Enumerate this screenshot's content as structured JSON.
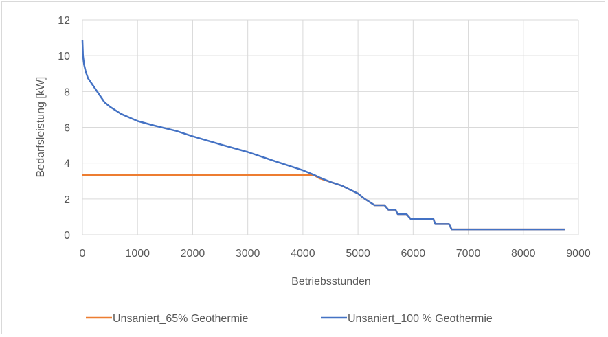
{
  "chart_data": {
    "type": "line",
    "title": "",
    "xlabel": "Betriebsstunden",
    "ylabel": "Bedarfsleistung [kW]",
    "xlim": [
      0,
      9000
    ],
    "ylim": [
      0,
      12
    ],
    "x_ticks": [
      0,
      1000,
      2000,
      3000,
      4000,
      5000,
      6000,
      7000,
      8000,
      9000
    ],
    "y_ticks": [
      0,
      2,
      4,
      6,
      8,
      10,
      12
    ],
    "grid": true,
    "legend_position": "bottom",
    "series": [
      {
        "name": "Unsaniert_65% Geothermie",
        "color": "#ed7d31",
        "points": [
          [
            0,
            3.33
          ],
          [
            4200,
            3.33
          ],
          [
            4300,
            3.15
          ],
          [
            4500,
            2.95
          ],
          [
            4700,
            2.75
          ],
          [
            4900,
            2.45
          ],
          [
            5000,
            2.3
          ],
          [
            5100,
            2.05
          ],
          [
            5200,
            1.85
          ],
          [
            5300,
            1.65
          ],
          [
            5480,
            1.65
          ],
          [
            5550,
            1.4
          ],
          [
            5680,
            1.4
          ],
          [
            5720,
            1.15
          ],
          [
            5880,
            1.15
          ],
          [
            5960,
            0.87
          ],
          [
            6370,
            0.87
          ],
          [
            6400,
            0.6
          ],
          [
            6650,
            0.6
          ],
          [
            6700,
            0.3
          ],
          [
            8750,
            0.3
          ]
        ]
      },
      {
        "name": "Unsaniert_100 % Geothermie",
        "color": "#4472c4",
        "points": [
          [
            0,
            10.85
          ],
          [
            10,
            10.0
          ],
          [
            30,
            9.5
          ],
          [
            60,
            9.1
          ],
          [
            100,
            8.75
          ],
          [
            200,
            8.3
          ],
          [
            300,
            7.85
          ],
          [
            400,
            7.4
          ],
          [
            500,
            7.15
          ],
          [
            700,
            6.75
          ],
          [
            1000,
            6.35
          ],
          [
            1300,
            6.1
          ],
          [
            1700,
            5.8
          ],
          [
            2000,
            5.5
          ],
          [
            2500,
            5.05
          ],
          [
            3000,
            4.62
          ],
          [
            3500,
            4.1
          ],
          [
            4000,
            3.6
          ],
          [
            4200,
            3.35
          ],
          [
            4300,
            3.2
          ],
          [
            4500,
            2.95
          ],
          [
            4700,
            2.75
          ],
          [
            4900,
            2.45
          ],
          [
            5000,
            2.3
          ],
          [
            5100,
            2.05
          ],
          [
            5200,
            1.85
          ],
          [
            5300,
            1.65
          ],
          [
            5480,
            1.65
          ],
          [
            5550,
            1.4
          ],
          [
            5680,
            1.4
          ],
          [
            5720,
            1.15
          ],
          [
            5880,
            1.15
          ],
          [
            5960,
            0.87
          ],
          [
            6370,
            0.87
          ],
          [
            6400,
            0.6
          ],
          [
            6650,
            0.6
          ],
          [
            6700,
            0.3
          ],
          [
            8750,
            0.3
          ]
        ]
      }
    ]
  }
}
